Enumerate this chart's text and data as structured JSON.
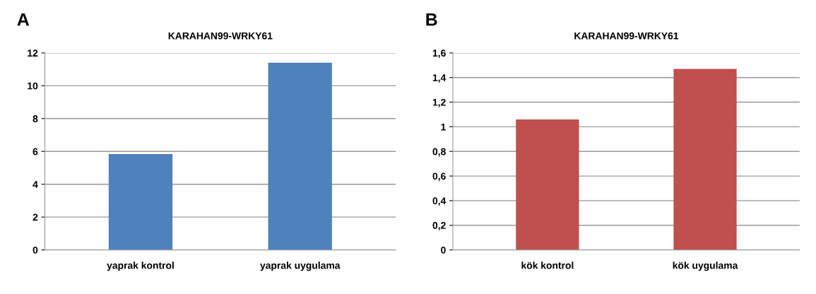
{
  "chart_data": [
    {
      "type": "bar",
      "title": "KARAHAN99-WRKY61",
      "annotations": [
        "A"
      ],
      "categories": [
        "yaprak kontrol",
        "yaprak uygulama"
      ],
      "values": [
        5.84,
        11.4
      ],
      "color": "#4f81bd",
      "ylim": [
        0,
        12
      ],
      "yticks": [
        0,
        2,
        4,
        6,
        8,
        10,
        12
      ],
      "grid": "y",
      "legend": false
    },
    {
      "type": "bar",
      "title": "KARAHAN99-WRKY61",
      "annotations": [
        "B"
      ],
      "categories": [
        "kök kontrol",
        "kök uygulama"
      ],
      "values": [
        1.06,
        1.47
      ],
      "color": "#c0504d",
      "ylim": [
        0,
        1.6
      ],
      "yticks": [
        0,
        {
          "value": 0.2,
          "label": "0,2"
        },
        {
          "value": 0.4,
          "label": "0,4"
        },
        {
          "value": 0.6,
          "label": "0,6"
        },
        {
          "value": 0.8,
          "label": "0,8"
        },
        1,
        {
          "value": 1.2,
          "label": "1,2"
        },
        {
          "value": 1.4,
          "label": "1,4"
        },
        {
          "value": 1.6,
          "label": "1,6"
        }
      ],
      "grid": "y",
      "legend": false
    }
  ]
}
